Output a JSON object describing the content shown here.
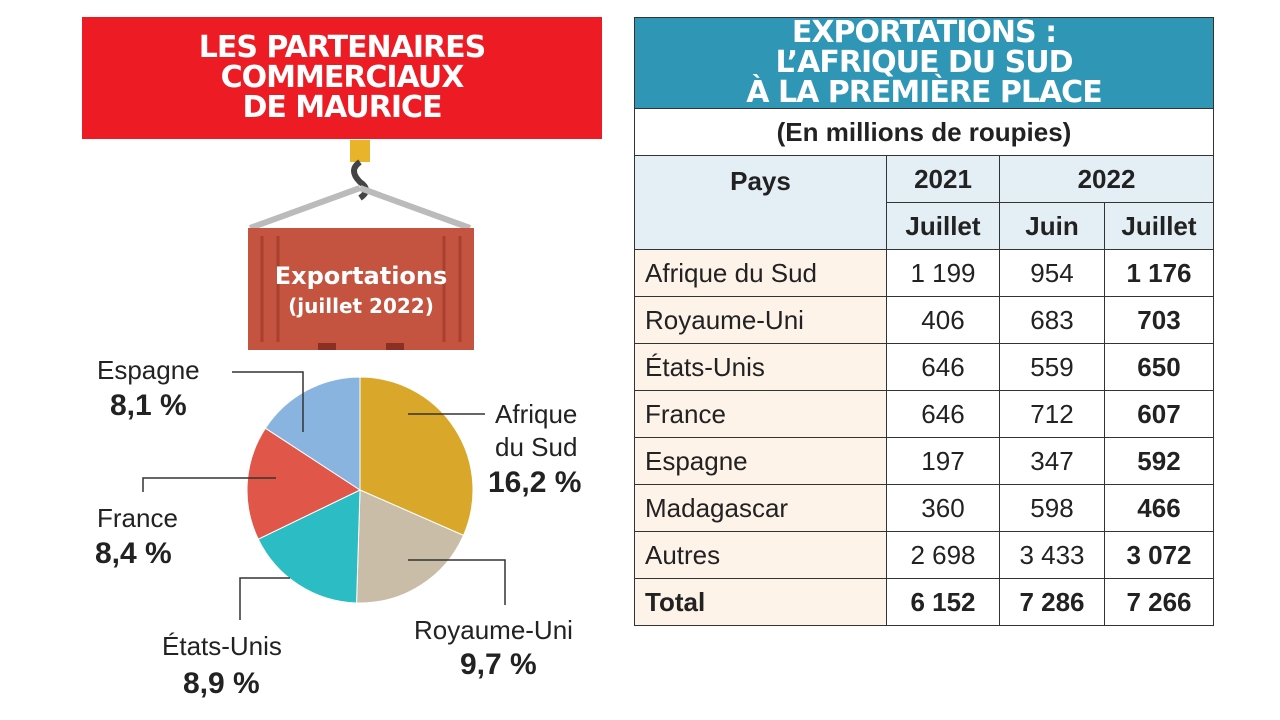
{
  "chart_data": {
    "type": "pie",
    "title": [
      "LES PARTENAIRES",
      "COMMERCIAUX",
      "DE MAURICE"
    ],
    "annotations": [
      "Exportations",
      "(juillet 2022)"
    ],
    "categories": [
      "Afrique du Sud",
      "Royaume-Uni",
      "États-Unis",
      "France",
      "Espagne"
    ],
    "values": [
      16.2,
      9.7,
      8.9,
      8.4,
      8.1
    ],
    "value_labels": [
      "16,2 %",
      "9,7 %",
      "8,9 %",
      "8,4 %",
      "8,1 %"
    ],
    "colors": [
      "#d9a82b",
      "#c9bda8",
      "#2bbcc4",
      "#e0574a",
      "#8ab4e0"
    ]
  },
  "table": {
    "title": [
      "EXPORTATIONS :",
      "L’AFRIQUE DU SUD",
      "À LA PREMIÈRE PLACE"
    ],
    "subtitle": "(En millions de roupies)",
    "header": {
      "country": "Pays",
      "years": [
        "2021",
        "2022"
      ],
      "months": [
        "Juillet",
        "Juin",
        "Juillet"
      ]
    },
    "rows": [
      [
        "Afrique du Sud",
        "1 199",
        "954",
        "1 176"
      ],
      [
        "Royaume-Uni",
        "406",
        "683",
        "703"
      ],
      [
        "États-Unis",
        "646",
        "559",
        "650"
      ],
      [
        "France",
        "646",
        "712",
        "607"
      ],
      [
        "Espagne",
        "197",
        "347",
        "592"
      ],
      [
        "Madagascar",
        "360",
        "598",
        "466"
      ],
      [
        "Autres",
        "2 698",
        "3 433",
        "3 072"
      ],
      [
        "Total",
        "6 152",
        "7 286",
        "7 266"
      ]
    ]
  }
}
